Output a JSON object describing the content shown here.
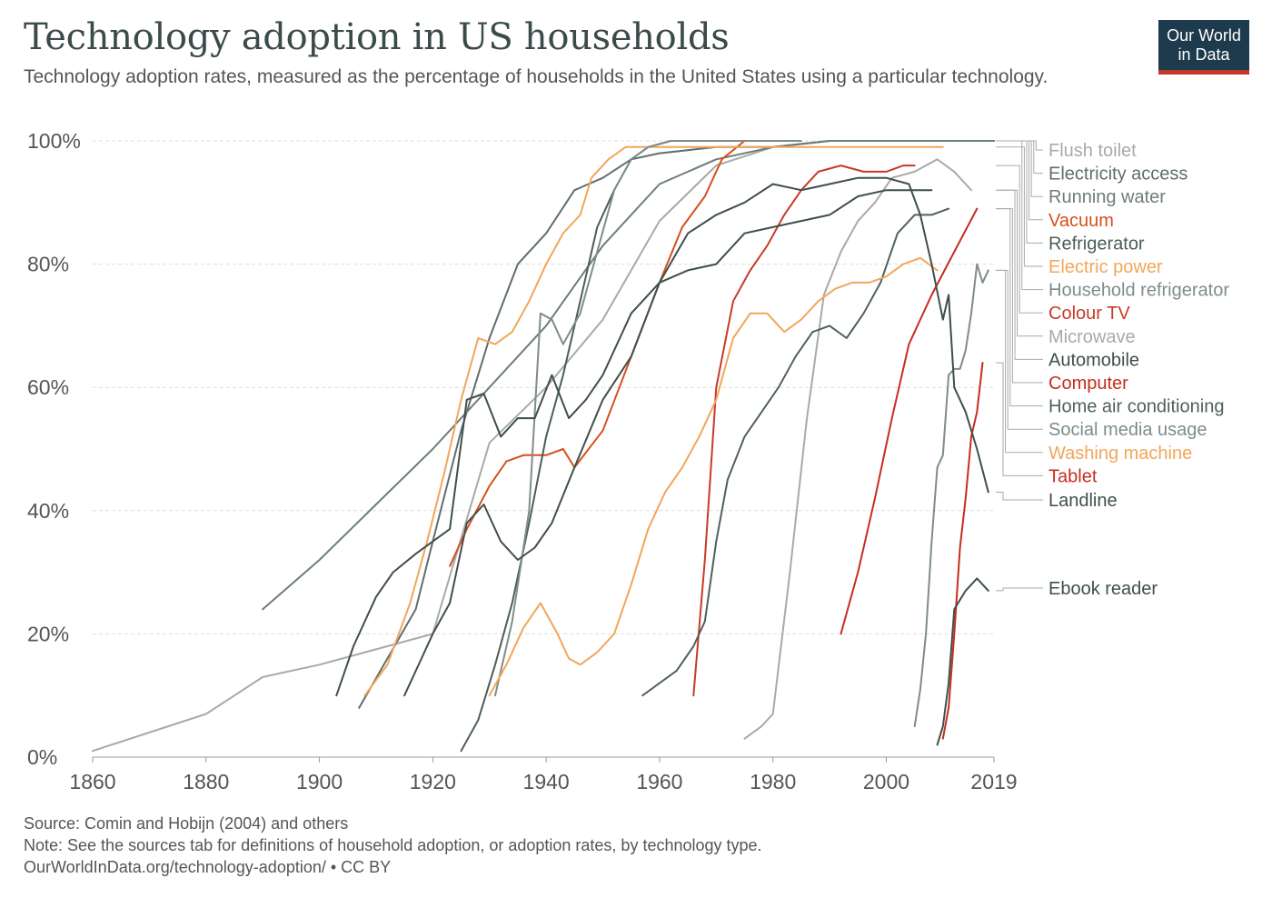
{
  "header": {
    "title": "Technology adoption in US households",
    "subtitle": "Technology adoption rates, measured as the percentage of households in the United States using a particular technology.",
    "logo_line1": "Our World",
    "logo_line2": "in Data"
  },
  "footer": {
    "source": "Source: Comin and Hobijn (2004) and others",
    "note": "Note: See the sources tab for definitions of household adoption, or adoption rates, by technology type.",
    "url": "OurWorldInData.org/technology-adoption/ • CC BY"
  },
  "chart_data": {
    "type": "line",
    "title": "Technology adoption in US households",
    "xlim": [
      1860,
      2019
    ],
    "ylim": [
      0,
      100
    ],
    "x_ticks": [
      1860,
      1880,
      1900,
      1920,
      1940,
      1960,
      1980,
      2000,
      2019
    ],
    "y_ticks": [
      {
        "value": 0,
        "label": "0%"
      },
      {
        "value": 20,
        "label": "20%"
      },
      {
        "value": 40,
        "label": "40%"
      },
      {
        "value": 60,
        "label": "60%"
      },
      {
        "value": 80,
        "label": "80%"
      },
      {
        "value": 100,
        "label": "100%"
      }
    ],
    "grid": "horizontal-dashed",
    "legend": "right",
    "series": [
      {
        "name": "Flush toilet",
        "color": "#a9a9a9",
        "points": [
          [
            1860,
            1
          ],
          [
            1880,
            7
          ],
          [
            1890,
            13
          ],
          [
            1900,
            15
          ],
          [
            1920,
            20
          ],
          [
            1930,
            51
          ],
          [
            1940,
            60
          ],
          [
            1950,
            71
          ],
          [
            1960,
            87
          ],
          [
            1970,
            96
          ],
          [
            1980,
            99
          ],
          [
            1990,
            100
          ],
          [
            2000,
            100
          ],
          [
            2010,
            100
          ],
          [
            2019,
            100
          ]
        ]
      },
      {
        "name": "Electricity access",
        "color": "#5f6e6d",
        "points": [
          [
            1907,
            8
          ],
          [
            1912,
            16
          ],
          [
            1917,
            24
          ],
          [
            1920,
            35
          ],
          [
            1925,
            53
          ],
          [
            1930,
            68
          ],
          [
            1935,
            80
          ],
          [
            1940,
            85
          ],
          [
            1945,
            92
          ],
          [
            1950,
            94
          ],
          [
            1955,
            97
          ],
          [
            1960,
            98
          ],
          [
            1970,
            99
          ],
          [
            1980,
            99
          ],
          [
            1990,
            100
          ],
          [
            2010,
            100
          ],
          [
            2019,
            100
          ]
        ]
      },
      {
        "name": "Running water",
        "color": "#6d7d77",
        "points": [
          [
            1890,
            24
          ],
          [
            1900,
            32
          ],
          [
            1910,
            41
          ],
          [
            1920,
            50
          ],
          [
            1930,
            60
          ],
          [
            1940,
            70
          ],
          [
            1950,
            83
          ],
          [
            1960,
            93
          ],
          [
            1970,
            97
          ],
          [
            1980,
            99
          ],
          [
            1990,
            100
          ],
          [
            2019,
            100
          ]
        ]
      },
      {
        "name": "Vacuum",
        "color": "#d64f1d",
        "points": [
          [
            1923,
            31
          ],
          [
            1926,
            37
          ],
          [
            1930,
            44
          ],
          [
            1933,
            48
          ],
          [
            1936,
            49
          ],
          [
            1940,
            49
          ],
          [
            1943,
            50
          ],
          [
            1945,
            47
          ],
          [
            1950,
            53
          ],
          [
            1955,
            65
          ],
          [
            1960,
            77
          ],
          [
            1964,
            86
          ],
          [
            1968,
            91
          ],
          [
            1971,
            97
          ],
          [
            1975,
            100
          ],
          [
            1978,
            100
          ]
        ]
      },
      {
        "name": "Refrigerator",
        "color": "#4a5e58",
        "points": [
          [
            1925,
            1
          ],
          [
            1928,
            6
          ],
          [
            1931,
            15
          ],
          [
            1934,
            25
          ],
          [
            1937,
            38
          ],
          [
            1940,
            52
          ],
          [
            1943,
            62
          ],
          [
            1946,
            74
          ],
          [
            1949,
            86
          ],
          [
            1952,
            92
          ],
          [
            1955,
            97
          ],
          [
            1958,
            99
          ],
          [
            1962,
            100
          ],
          [
            1975,
            100
          ]
        ]
      },
      {
        "name": "Electric power",
        "color": "#f2a65a",
        "points": [
          [
            1908,
            10
          ],
          [
            1912,
            15
          ],
          [
            1916,
            25
          ],
          [
            1919,
            35
          ],
          [
            1922,
            46
          ],
          [
            1925,
            58
          ],
          [
            1928,
            68
          ],
          [
            1931,
            67
          ],
          [
            1934,
            69
          ],
          [
            1937,
            74
          ],
          [
            1940,
            80
          ],
          [
            1943,
            85
          ],
          [
            1946,
            88
          ],
          [
            1948,
            94
          ],
          [
            1951,
            97
          ],
          [
            1954,
            99
          ],
          [
            1960,
            99
          ],
          [
            1970,
            99
          ],
          [
            1980,
            99
          ],
          [
            1990,
            99
          ],
          [
            2000,
            99
          ],
          [
            2010,
            99
          ]
        ]
      },
      {
        "name": "Household refrigerator",
        "color": "#7e8c8b",
        "points": [
          [
            1931,
            10
          ],
          [
            1934,
            22
          ],
          [
            1937,
            40
          ],
          [
            1939,
            72
          ],
          [
            1941,
            71
          ],
          [
            1943,
            67
          ],
          [
            1946,
            72
          ],
          [
            1949,
            82
          ],
          [
            1952,
            92
          ],
          [
            1955,
            97
          ],
          [
            1958,
            99
          ],
          [
            1962,
            100
          ],
          [
            1970,
            100
          ],
          [
            1985,
            100
          ]
        ]
      },
      {
        "name": "Colour TV",
        "color": "#c83a28",
        "points": [
          [
            1966,
            10
          ],
          [
            1968,
            32
          ],
          [
            1970,
            60
          ],
          [
            1973,
            74
          ],
          [
            1976,
            79
          ],
          [
            1979,
            83
          ],
          [
            1982,
            88
          ],
          [
            1985,
            92
          ],
          [
            1988,
            95
          ],
          [
            1992,
            96
          ],
          [
            1996,
            95
          ],
          [
            2000,
            95
          ],
          [
            2003,
            96
          ],
          [
            2005,
            96
          ]
        ]
      },
      {
        "name": "Microwave",
        "color": "#a9a9a9",
        "points": [
          [
            1975,
            3
          ],
          [
            1978,
            5
          ],
          [
            1980,
            7
          ],
          [
            1983,
            30
          ],
          [
            1986,
            55
          ],
          [
            1989,
            75
          ],
          [
            1992,
            82
          ],
          [
            1995,
            87
          ],
          [
            1998,
            90
          ],
          [
            2001,
            94
          ],
          [
            2005,
            95
          ],
          [
            2009,
            97
          ],
          [
            2012,
            95
          ],
          [
            2015,
            92
          ]
        ]
      },
      {
        "name": "Automobile",
        "color": "#3f4f4b",
        "points": [
          [
            1903,
            10
          ],
          [
            1906,
            18
          ],
          [
            1910,
            26
          ],
          [
            1913,
            30
          ],
          [
            1917,
            33
          ],
          [
            1920,
            35
          ],
          [
            1923,
            37
          ],
          [
            1926,
            58
          ],
          [
            1929,
            59
          ],
          [
            1932,
            52
          ],
          [
            1935,
            55
          ],
          [
            1938,
            55
          ],
          [
            1941,
            62
          ],
          [
            1944,
            55
          ],
          [
            1947,
            58
          ],
          [
            1950,
            62
          ],
          [
            1955,
            72
          ],
          [
            1960,
            77
          ],
          [
            1965,
            79
          ],
          [
            1970,
            80
          ],
          [
            1975,
            85
          ],
          [
            1980,
            86
          ],
          [
            1985,
            87
          ],
          [
            1990,
            88
          ],
          [
            1995,
            91
          ],
          [
            2000,
            92
          ],
          [
            2005,
            92
          ],
          [
            2008,
            92
          ]
        ]
      },
      {
        "name": "Computer",
        "color": "#c62d1f",
        "points": [
          [
            1992,
            20
          ],
          [
            1995,
            30
          ],
          [
            1998,
            42
          ],
          [
            2001,
            55
          ],
          [
            2004,
            67
          ],
          [
            2008,
            75
          ],
          [
            2012,
            82
          ],
          [
            2016,
            89
          ]
        ]
      },
      {
        "name": "Home air conditioning",
        "color": "#4f615c",
        "points": [
          [
            1957,
            10
          ],
          [
            1960,
            12
          ],
          [
            1963,
            14
          ],
          [
            1966,
            18
          ],
          [
            1968,
            22
          ],
          [
            1970,
            35
          ],
          [
            1972,
            45
          ],
          [
            1975,
            52
          ],
          [
            1978,
            56
          ],
          [
            1981,
            60
          ],
          [
            1984,
            65
          ],
          [
            1987,
            69
          ],
          [
            1990,
            70
          ],
          [
            1993,
            68
          ],
          [
            1996,
            72
          ],
          [
            1999,
            77
          ],
          [
            2002,
            85
          ],
          [
            2005,
            88
          ],
          [
            2008,
            88
          ],
          [
            2011,
            89
          ]
        ]
      },
      {
        "name": "Social media usage",
        "color": "#7e8c8b",
        "points": [
          [
            2005,
            5
          ],
          [
            2006,
            11
          ],
          [
            2007,
            20
          ],
          [
            2008,
            35
          ],
          [
            2009,
            47
          ],
          [
            2010,
            49
          ],
          [
            2011,
            62
          ],
          [
            2012,
            63
          ],
          [
            2013,
            63
          ],
          [
            2014,
            66
          ],
          [
            2015,
            72
          ],
          [
            2016,
            80
          ],
          [
            2017,
            77
          ],
          [
            2018,
            79
          ]
        ]
      },
      {
        "name": "Washing machine",
        "color": "#f2a65a",
        "points": [
          [
            1930,
            10
          ],
          [
            1933,
            15
          ],
          [
            1936,
            21
          ],
          [
            1939,
            25
          ],
          [
            1942,
            20
          ],
          [
            1944,
            16
          ],
          [
            1946,
            15
          ],
          [
            1949,
            17
          ],
          [
            1952,
            20
          ],
          [
            1955,
            28
          ],
          [
            1958,
            37
          ],
          [
            1961,
            43
          ],
          [
            1964,
            47
          ],
          [
            1967,
            52
          ],
          [
            1970,
            58
          ],
          [
            1973,
            68
          ],
          [
            1976,
            72
          ],
          [
            1979,
            72
          ],
          [
            1982,
            69
          ],
          [
            1985,
            71
          ],
          [
            1988,
            74
          ],
          [
            1991,
            76
          ],
          [
            1994,
            77
          ],
          [
            1997,
            77
          ],
          [
            2000,
            78
          ],
          [
            2003,
            80
          ],
          [
            2006,
            81
          ],
          [
            2009,
            79
          ]
        ]
      },
      {
        "name": "Tablet",
        "color": "#c62d1f",
        "points": [
          [
            2010,
            3
          ],
          [
            2011,
            8
          ],
          [
            2012,
            20
          ],
          [
            2013,
            34
          ],
          [
            2014,
            42
          ],
          [
            2015,
            52
          ],
          [
            2016,
            56
          ],
          [
            2017,
            64
          ]
        ]
      },
      {
        "name": "Landline",
        "color": "#3f4f4b",
        "points": [
          [
            1915,
            10
          ],
          [
            1918,
            16
          ],
          [
            1920,
            20
          ],
          [
            1923,
            25
          ],
          [
            1926,
            38
          ],
          [
            1929,
            41
          ],
          [
            1932,
            35
          ],
          [
            1935,
            32
          ],
          [
            1938,
            34
          ],
          [
            1941,
            38
          ],
          [
            1945,
            47
          ],
          [
            1950,
            58
          ],
          [
            1955,
            65
          ],
          [
            1960,
            77
          ],
          [
            1965,
            85
          ],
          [
            1970,
            88
          ],
          [
            1975,
            90
          ],
          [
            1980,
            93
          ],
          [
            1985,
            92
          ],
          [
            1990,
            93
          ],
          [
            1995,
            94
          ],
          [
            2000,
            94
          ],
          [
            2004,
            93
          ],
          [
            2006,
            88
          ],
          [
            2008,
            80
          ],
          [
            2010,
            71
          ],
          [
            2011,
            75
          ],
          [
            2012,
            60
          ],
          [
            2014,
            56
          ],
          [
            2016,
            50
          ],
          [
            2018,
            43
          ]
        ]
      },
      {
        "name": "Ebook reader",
        "color": "#3f4f4b",
        "points": [
          [
            2009,
            2
          ],
          [
            2010,
            5
          ],
          [
            2011,
            12
          ],
          [
            2012,
            24
          ],
          [
            2014,
            27
          ],
          [
            2016,
            29
          ],
          [
            2018,
            27
          ]
        ]
      }
    ]
  }
}
